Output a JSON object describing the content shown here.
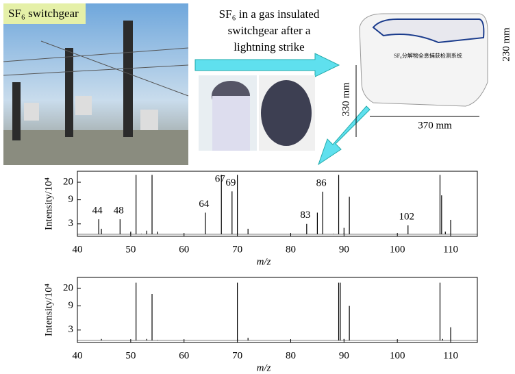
{
  "photo_label": "SF₆ switchgear",
  "caption_lines": [
    "SF₆ in a gas insulated",
    "switchgear after a",
    "lightning strike"
  ],
  "device": {
    "name": "SF₆分解物全息捕获检测系统",
    "height": "230 mm",
    "depth": "330 mm",
    "width": "370 mm"
  },
  "chart_data": [
    {
      "type": "stem",
      "ylabel": "Intensity/10⁴",
      "xlabel": "m/z",
      "color": "#000000",
      "yscale": "log",
      "xlim": [
        40,
        115
      ],
      "xticks": [
        40,
        50,
        60,
        70,
        80,
        90,
        100,
        110
      ],
      "ylim": [
        1.7,
        33
      ],
      "yticks": [
        3,
        9,
        20
      ],
      "x": [
        44,
        44.5,
        48,
        50,
        51,
        52,
        53,
        54,
        55,
        64,
        67,
        69,
        70,
        72,
        83,
        85,
        86,
        88,
        89,
        90,
        91,
        102,
        108,
        108.3,
        109,
        110
      ],
      "values": [
        3.7,
        2.4,
        3.7,
        2.1,
        28,
        1.9,
        2.2,
        28,
        2.1,
        5.0,
        28,
        13.2,
        28,
        2.4,
        3.0,
        5.0,
        13,
        1.9,
        28,
        2.5,
        10.3,
        2.8,
        28,
        11,
        2.1,
        3.6
      ],
      "annotations": [
        {
          "text": "44",
          "x": 44
        },
        {
          "text": "48",
          "x": 48
        },
        {
          "text": "64",
          "x": 64
        },
        {
          "text": "67",
          "x": 67
        },
        {
          "text": "69",
          "x": 69
        },
        {
          "text": "83",
          "x": 83
        },
        {
          "text": "86",
          "x": 86
        },
        {
          "text": "102",
          "x": 102
        }
      ]
    },
    {
      "type": "stem",
      "ylabel": "Intensity/10⁴",
      "xlabel": "m/z",
      "color": "#000000",
      "yscale": "log",
      "xlim": [
        40,
        115
      ],
      "xticks": [
        40,
        50,
        60,
        70,
        80,
        90,
        100,
        110
      ],
      "ylim": [
        1.7,
        33
      ],
      "yticks": [
        3,
        9,
        20
      ],
      "x": [
        44.5,
        51,
        53,
        54,
        55,
        70,
        72,
        89,
        89.3,
        90,
        91,
        108,
        108.5,
        110
      ],
      "values": [
        2.0,
        26,
        2.0,
        15.6,
        1.9,
        26,
        2.1,
        26,
        26,
        2.0,
        9.0,
        26,
        2.0,
        3.4
      ]
    }
  ]
}
